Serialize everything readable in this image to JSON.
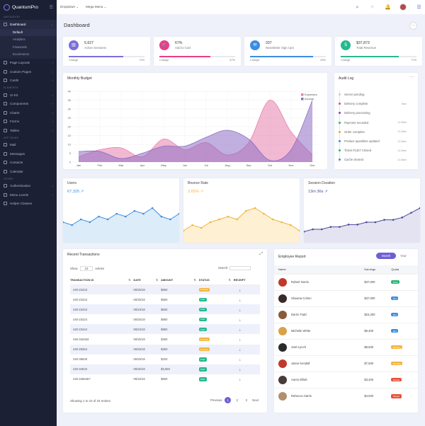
{
  "brand": {
    "name": "QuantumPro"
  },
  "sidebar": {
    "sec_navigation": "NAVIGATION",
    "dashboard": "Dashboard",
    "dashboard_sub": [
      "Default",
      "Analytics",
      "Financials",
      "Ecommerce"
    ],
    "nav1": [
      "Page Layouts",
      "Custom Pages",
      "Cards"
    ],
    "sec_elements": "ELEMENTS",
    "nav2": [
      "UI Kit",
      "Components",
      "Charts",
      "Forms",
      "Tables"
    ],
    "sec_apps": "APP VIEWS",
    "nav3": [
      "Mail",
      "Messages",
      "Contacts",
      "Calendar"
    ],
    "sec_other": "OTHER",
    "nav4": [
      "Authentication",
      "Menu Levels",
      "Helper Classes"
    ]
  },
  "topbar": {
    "dropdown": "Dropdown",
    "mega": "Mega Menu"
  },
  "page": {
    "title": "Dashboard"
  },
  "stats": [
    {
      "value": "5,627",
      "label": "Active Sessions",
      "change": "Change",
      "pct": "72%",
      "fill": 0.72,
      "color": "#7b6fd8",
      "icon": "bar-chart-icon",
      "glyph": "▥"
    },
    {
      "value": "67%",
      "label": "Add to Cart",
      "change": "Change",
      "pct": "67%",
      "fill": 0.67,
      "color": "#ea3d88",
      "icon": "cart-icon",
      "glyph": "🛒"
    },
    {
      "value": "337",
      "label": "Newsletter Sign Ups",
      "change": "Change",
      "pct": "83%",
      "fill": 0.83,
      "color": "#3b8de0",
      "icon": "mail-icon",
      "glyph": "✉"
    },
    {
      "value": "$37,873",
      "label": "Total Revenue",
      "change": "Change",
      "pct": "77%",
      "fill": 0.77,
      "color": "#27b88e",
      "icon": "dollar-icon",
      "glyph": "$"
    }
  ],
  "budget": {
    "title": "Monthly Budget"
  },
  "chart_data": {
    "type": "area",
    "title": "Monthly Budget",
    "categories": [
      "Jan",
      "Feb",
      "Mar",
      "Apr",
      "May",
      "Jun",
      "Jul",
      "Aug",
      "Sep",
      "Oct",
      "Nov",
      "Dec"
    ],
    "ylim": [
      0,
      40
    ],
    "yticks": [
      0,
      5,
      10,
      15,
      20,
      25,
      30,
      35,
      40
    ],
    "series": [
      {
        "name": "Expenses",
        "color": "#e87fae",
        "values": [
          3,
          7,
          8,
          3,
          13,
          7,
          11,
          4,
          11,
          35,
          17,
          4
        ]
      },
      {
        "name": "Income",
        "color": "#8e6fc4",
        "values": [
          6,
          6,
          2,
          5,
          9,
          9,
          14,
          18,
          13,
          1,
          7,
          35
        ]
      }
    ],
    "legend": "top-right"
  },
  "audit": {
    "title": "Audit Log",
    "items": [
      {
        "text": "Server pending",
        "time": "",
        "color": "#ccc"
      },
      {
        "text": "Delivery complete",
        "time": "9min",
        "color": "#e8467c"
      },
      {
        "text": "Delivery processing",
        "time": "",
        "color": "#8b3fc4"
      },
      {
        "text": "Payment recorded",
        "time": "11:20am",
        "color": "#2bb673"
      },
      {
        "text": "Order complete",
        "time": "11:20am",
        "color": "#f5a623"
      },
      {
        "text": "Product quantities updated",
        "time": "11:20am",
        "color": "#3b8de0"
      },
      {
        "text": "Ticket #1327 Closed",
        "time": "11:20am",
        "color": "#2bb673"
      },
      {
        "text": "Cache cleared",
        "time": "11:20am",
        "color": "#3b8de0"
      }
    ]
  },
  "mini": [
    {
      "title": "Users",
      "value": "67,325",
      "color": "#3b8de0",
      "fill": "#d4e7f8"
    },
    {
      "title": "Bounce Rate",
      "value": "3.65%",
      "color": "#f5b33e",
      "fill": "#fcecc8"
    },
    {
      "title": "Session Duration",
      "value": "13m 36s",
      "color": "#4a4a9a",
      "fill": "#dcdcee"
    }
  ],
  "transactions": {
    "title": "Recent Transactions",
    "show": "Show",
    "show_val": "10",
    "entries": "entries",
    "search": "Search:",
    "headers": [
      "TRANSACTION ID",
      "DATE",
      "AMOUNT",
      "STATUS",
      "RECEIPT"
    ],
    "rows": [
      [
        "440-23423",
        "06/25/18",
        "$550",
        "Pending"
      ],
      [
        "440-23423",
        "06/25/18",
        "$550",
        "Paid"
      ],
      [
        "440-23423",
        "06/23/18",
        "$630",
        "Paid"
      ],
      [
        "440-23424",
        "06/25/18",
        "$900",
        "Paid"
      ],
      [
        "440-23444",
        "06/24/18",
        "$950",
        "Paid"
      ],
      [
        "440-343453",
        "06/25/18",
        "$260",
        "Pending"
      ],
      [
        "440-29364",
        "06/25/18",
        "$250",
        "Pending"
      ],
      [
        "440-35635",
        "06/25/18",
        "$220",
        "Paid"
      ],
      [
        "440-34533",
        "06/25/18",
        "$3,550",
        "Paid"
      ],
      [
        "440-3456467",
        "06/15/18",
        "$550",
        "Paid"
      ]
    ],
    "footer": "Showing 1 to 10 of 24 entries",
    "prev": "Previous",
    "pages": [
      "1",
      "2",
      "3"
    ],
    "next": "Next"
  },
  "employee": {
    "title": "Employee Report",
    "month": "Month",
    "year": "Year",
    "headers": [
      "Name",
      "Earnings",
      "Quota"
    ],
    "rows": [
      [
        "Robert Norris",
        "$37,000",
        "Done",
        "#2bb673",
        "#c0392b"
      ],
      [
        "Shawna Cohen",
        "$37,000",
        "Met",
        "#3b8de0",
        "#3a2a2a"
      ],
      [
        "Darrin Todd",
        "$23,200",
        "Met",
        "#3b8de0",
        "#8a5a3a"
      ],
      [
        "Michelle White",
        "$9,400",
        "Met",
        "#3b8de0",
        "#d8a24a"
      ],
      [
        "Josh Lynch",
        "$8,500",
        "Pending",
        "#f5b33e",
        "#2a2a2a"
      ],
      [
        "Jason Kendall",
        "$7,500",
        "Pending",
        "#f5b33e",
        "#c0392b"
      ],
      [
        "Aaron Elliott",
        "$3,400",
        "Danger",
        "#e8503a",
        "#4a3a3a"
      ],
      [
        "Rebecca Harris",
        "$4,000",
        "Danger",
        "#e8503a",
        "#b09070"
      ]
    ]
  }
}
